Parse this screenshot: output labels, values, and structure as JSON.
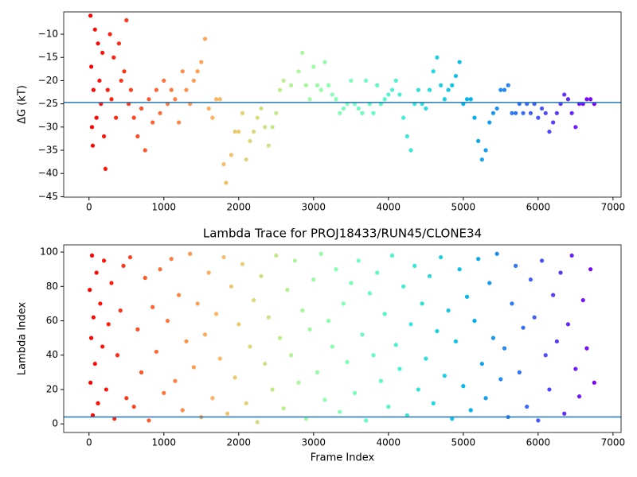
{
  "chart_data": [
    {
      "type": "scatter",
      "ylabel": "ΔG (kT)",
      "colormap": "rainbow_r",
      "hline": -24.7,
      "hline_color": "#1f77b4",
      "xlim": [
        -338,
        7108
      ],
      "ylim": [
        -45.1,
        -5.2
      ],
      "xticks": [
        0,
        1000,
        2000,
        3000,
        4000,
        5000,
        6000,
        7000
      ],
      "yticks": [
        {
          "value": -45,
          "label": "−45"
        },
        {
          "value": -40,
          "label": "−40"
        },
        {
          "value": -35,
          "label": "−35"
        },
        {
          "value": -30,
          "label": "−30"
        },
        {
          "value": -25,
          "label": "−25"
        },
        {
          "value": -20,
          "label": "−20"
        },
        {
          "value": -15,
          "label": "−15"
        },
        {
          "value": -10,
          "label": "−10"
        }
      ],
      "x": [
        20,
        30,
        40,
        50,
        60,
        80,
        100,
        120,
        140,
        160,
        180,
        200,
        220,
        250,
        280,
        300,
        330,
        360,
        400,
        430,
        470,
        500,
        530,
        560,
        600,
        650,
        700,
        750,
        800,
        850,
        900,
        950,
        1000,
        1050,
        1100,
        1150,
        1200,
        1250,
        1300,
        1350,
        1400,
        1450,
        1500,
        1550,
        1600,
        1650,
        1700,
        1750,
        1800,
        1830,
        1900,
        1950,
        2000,
        2050,
        2100,
        2150,
        2200,
        2250,
        2300,
        2350,
        2400,
        2450,
        2500,
        2550,
        2600,
        2700,
        2800,
        2850,
        2900,
        2950,
        3000,
        3050,
        3100,
        3150,
        3200,
        3250,
        3300,
        3350,
        3400,
        3450,
        3500,
        3550,
        3600,
        3650,
        3700,
        3750,
        3800,
        3850,
        3900,
        3950,
        4000,
        4050,
        4100,
        4150,
        4200,
        4250,
        4300,
        4350,
        4400,
        4450,
        4500,
        4550,
        4600,
        4650,
        4700,
        4750,
        4800,
        4850,
        4900,
        4950,
        5000,
        5050,
        5100,
        5150,
        5200,
        5250,
        5300,
        5350,
        5400,
        5450,
        5500,
        5550,
        5600,
        5650,
        5700,
        5750,
        5800,
        5850,
        5900,
        5950,
        6000,
        6050,
        6100,
        6150,
        6200,
        6250,
        6300,
        6350,
        6400,
        6450,
        6500,
        6550,
        6600,
        6650,
        6700,
        6750
      ],
      "values": [
        -6,
        -17,
        -30,
        -34,
        -22,
        -9,
        -28,
        -12,
        -20,
        -25,
        -14,
        -32,
        -39,
        -22,
        -10,
        -24,
        -15,
        -28,
        -12,
        -20,
        -18,
        -7,
        -25,
        -22,
        -28,
        -32,
        -26,
        -35,
        -24,
        -29,
        -22,
        -27,
        -20,
        -25,
        -22,
        -24,
        -29,
        -18,
        -22,
        -25,
        -20,
        -18,
        -16,
        -11,
        -26,
        -28,
        -24,
        -24,
        -38,
        -42,
        -36,
        -31,
        -31,
        -27,
        -37,
        -33,
        -31,
        -28,
        -26,
        -30,
        -34,
        -30,
        -27,
        -22,
        -20,
        -21,
        -18,
        -14,
        -21,
        -24,
        -17,
        -21,
        -22,
        -16,
        -21,
        -23,
        -24,
        -27,
        -26,
        -25,
        -20,
        -25,
        -26,
        -27,
        -20,
        -25,
        -27,
        -21,
        -25,
        -24,
        -23,
        -22,
        -20,
        -23,
        -28,
        -32,
        -35,
        -25,
        -22,
        -25,
        -26,
        -22,
        -18,
        -15,
        -21,
        -24,
        -22,
        -21,
        -19,
        -16,
        -25,
        -24,
        -24,
        -28,
        -33,
        -37,
        -35,
        -29,
        -27,
        -26,
        -22,
        -22,
        -21,
        -27,
        -27,
        -25,
        -27,
        -25,
        -27,
        -25,
        -28,
        -26,
        -27,
        -31,
        -29,
        -27,
        -25,
        -23,
        -24,
        -27,
        -30,
        -25,
        -25,
        -24,
        -24,
        -25
      ]
    },
    {
      "type": "scatter",
      "title": "Lambda Trace for PROJ18433/RUN45/CLONE34",
      "xlabel": "Frame Index",
      "ylabel": "Lambda Index",
      "colormap": "rainbow_r",
      "hline": 4,
      "hline_color": "#1f77b4",
      "xlim": [
        -338,
        7108
      ],
      "ylim": [
        -5,
        104.2
      ],
      "xticks": [
        0,
        1000,
        2000,
        3000,
        4000,
        5000,
        6000,
        7000
      ],
      "yticks": [
        0,
        20,
        40,
        60,
        80,
        100
      ],
      "x": [
        10,
        20,
        30,
        40,
        50,
        60,
        80,
        100,
        120,
        150,
        180,
        200,
        230,
        260,
        300,
        340,
        380,
        420,
        460,
        500,
        550,
        600,
        650,
        700,
        750,
        800,
        850,
        900,
        950,
        1000,
        1050,
        1100,
        1150,
        1200,
        1250,
        1300,
        1350,
        1400,
        1450,
        1500,
        1550,
        1600,
        1650,
        1700,
        1750,
        1800,
        1850,
        1900,
        1950,
        2000,
        2050,
        2100,
        2150,
        2200,
        2250,
        2300,
        2350,
        2400,
        2450,
        2500,
        2550,
        2600,
        2650,
        2700,
        2750,
        2800,
        2850,
        2900,
        2950,
        3000,
        3050,
        3100,
        3150,
        3200,
        3250,
        3300,
        3350,
        3400,
        3450,
        3500,
        3550,
        3600,
        3650,
        3700,
        3750,
        3800,
        3850,
        3900,
        3950,
        4000,
        4050,
        4100,
        4150,
        4200,
        4250,
        4300,
        4350,
        4400,
        4450,
        4500,
        4550,
        4600,
        4650,
        4700,
        4750,
        4800,
        4850,
        4900,
        4950,
        5000,
        5050,
        5100,
        5150,
        5200,
        5250,
        5300,
        5350,
        5400,
        5450,
        5500,
        5550,
        5600,
        5650,
        5700,
        5750,
        5800,
        5850,
        5900,
        5950,
        6000,
        6050,
        6100,
        6150,
        6200,
        6250,
        6300,
        6350,
        6400,
        6450,
        6500,
        6550,
        6600,
        6650,
        6700,
        6750
      ],
      "values": [
        78,
        24,
        50,
        98,
        5,
        62,
        35,
        88,
        12,
        70,
        45,
        95,
        20,
        58,
        82,
        3,
        40,
        66,
        92,
        15,
        97,
        10,
        55,
        30,
        85,
        2,
        68,
        42,
        90,
        18,
        60,
        96,
        25,
        75,
        8,
        48,
        99,
        33,
        70,
        4,
        52,
        88,
        15,
        64,
        38,
        97,
        6,
        80,
        27,
        58,
        93,
        12,
        45,
        72,
        1,
        86,
        35,
        62,
        20,
        98,
        50,
        9,
        78,
        40,
        95,
        24,
        66,
        3,
        55,
        84,
        30,
        99,
        14,
        60,
        45,
        90,
        7,
        70,
        36,
        82,
        18,
        95,
        52,
        2,
        76,
        40,
        88,
        25,
        64,
        10,
        98,
        46,
        32,
        80,
        5,
        58,
        92,
        20,
        70,
        38,
        86,
        12,
        54,
        97,
        28,
        66,
        3,
        48,
        90,
        22,
        74,
        8,
        60,
        96,
        35,
        15,
        82,
        50,
        99,
        26,
        44,
        4,
        70,
        92,
        30,
        56,
        10,
        84,
        62,
        2,
        95,
        40,
        20,
        75,
        48,
        88,
        6,
        58,
        98,
        32,
        16,
        72,
        44,
        90,
        24
      ]
    }
  ]
}
